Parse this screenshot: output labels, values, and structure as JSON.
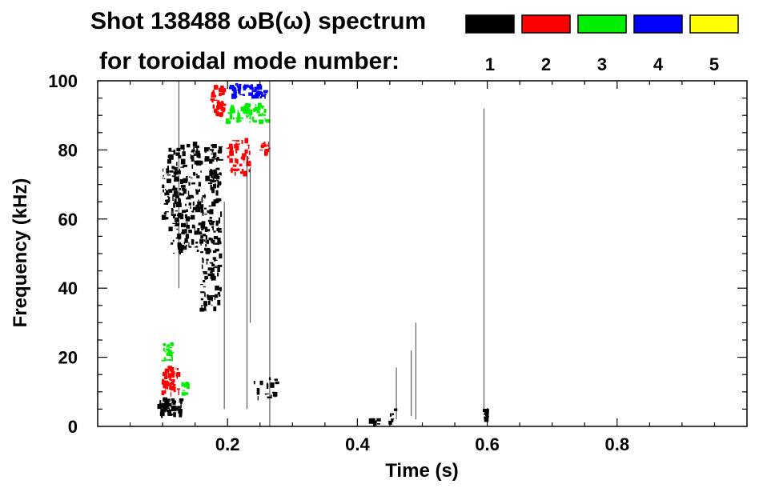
{
  "chart_data": {
    "type": "spectrogram",
    "title_line1": "Shot 138488 ωB(ω) spectrum",
    "title_line2": "for toroidal mode number:",
    "xlabel": "Time (s)",
    "ylabel": "Frequency (kHz)",
    "xlim": [
      0.0,
      1.0
    ],
    "ylim": [
      0,
      100
    ],
    "xticks": [
      0.2,
      0.4,
      0.6,
      0.8
    ],
    "xtick_labels": [
      "0.2",
      "0.4",
      "0.6",
      "0.8"
    ],
    "yticks": [
      0,
      20,
      40,
      60,
      80,
      100
    ],
    "ytick_labels": [
      "0",
      "20",
      "40",
      "60",
      "80",
      "100"
    ],
    "legend": [
      {
        "mode": "1",
        "color": "#000000"
      },
      {
        "mode": "2",
        "color": "#ff0000"
      },
      {
        "mode": "3",
        "color": "#00ee00"
      },
      {
        "mode": "4",
        "color": "#0000ff"
      },
      {
        "mode": "5",
        "color": "#ffff00"
      }
    ],
    "features": [
      {
        "mode": 1,
        "t": [
          0.11,
          0.19
        ],
        "f": [
          50,
          82
        ],
        "density": 320
      },
      {
        "mode": 1,
        "t": [
          0.16,
          0.19
        ],
        "f": [
          33,
          50
        ],
        "density": 60
      },
      {
        "mode": 1,
        "t": [
          0.095,
          0.13
        ],
        "f": [
          3,
          8
        ],
        "density": 60
      },
      {
        "mode": 1,
        "t": [
          0.24,
          0.28
        ],
        "f": [
          8,
          14
        ],
        "density": 20
      },
      {
        "mode": 1,
        "t": [
          0.1,
          0.11
        ],
        "f": [
          60,
          75
        ],
        "density": 25
      },
      {
        "mode": 2,
        "t": [
          0.175,
          0.195
        ],
        "f": [
          90,
          99
        ],
        "density": 40
      },
      {
        "mode": 2,
        "t": [
          0.2,
          0.235
        ],
        "f": [
          73,
          83
        ],
        "density": 50
      },
      {
        "mode": 2,
        "t": [
          0.25,
          0.265
        ],
        "f": [
          79,
          82
        ],
        "density": 15
      },
      {
        "mode": 2,
        "t": [
          0.1,
          0.125
        ],
        "f": [
          9,
          17
        ],
        "density": 50
      },
      {
        "mode": 3,
        "t": [
          0.2,
          0.265
        ],
        "f": [
          88,
          93
        ],
        "density": 60
      },
      {
        "mode": 3,
        "t": [
          0.1,
          0.115
        ],
        "f": [
          19,
          24
        ],
        "density": 20
      },
      {
        "mode": 3,
        "t": [
          0.13,
          0.14
        ],
        "f": [
          9,
          13
        ],
        "density": 10
      },
      {
        "mode": 4,
        "t": [
          0.205,
          0.26
        ],
        "f": [
          95,
          99
        ],
        "density": 45
      },
      {
        "mode": 1,
        "t": [
          0.596,
          0.601
        ],
        "f": [
          1,
          5
        ],
        "density": 15
      },
      {
        "mode": 1,
        "t": [
          0.42,
          0.435
        ],
        "f": [
          0.5,
          2
        ],
        "density": 6
      },
      {
        "mode": 1,
        "t": [
          0.45,
          0.46
        ],
        "f": [
          0.5,
          5
        ],
        "density": 6
      }
    ],
    "streaks": [
      {
        "mode": 1,
        "t": 0.125,
        "f": [
          40,
          100
        ]
      },
      {
        "mode": 1,
        "t": 0.195,
        "f": [
          5,
          65
        ]
      },
      {
        "mode": 1,
        "t": 0.23,
        "f": [
          5,
          78
        ]
      },
      {
        "mode": 1,
        "t": 0.235,
        "f": [
          30,
          75
        ]
      },
      {
        "mode": 1,
        "t": 0.595,
        "f": [
          5,
          92
        ]
      },
      {
        "mode": 1,
        "t": 0.49,
        "f": [
          2,
          30
        ]
      },
      {
        "mode": 1,
        "t": 0.483,
        "f": [
          3,
          22
        ]
      },
      {
        "mode": 1,
        "t": 0.46,
        "f": [
          2,
          17
        ]
      },
      {
        "mode": 1,
        "t": 0.265,
        "f": [
          0,
          100
        ]
      }
    ]
  }
}
